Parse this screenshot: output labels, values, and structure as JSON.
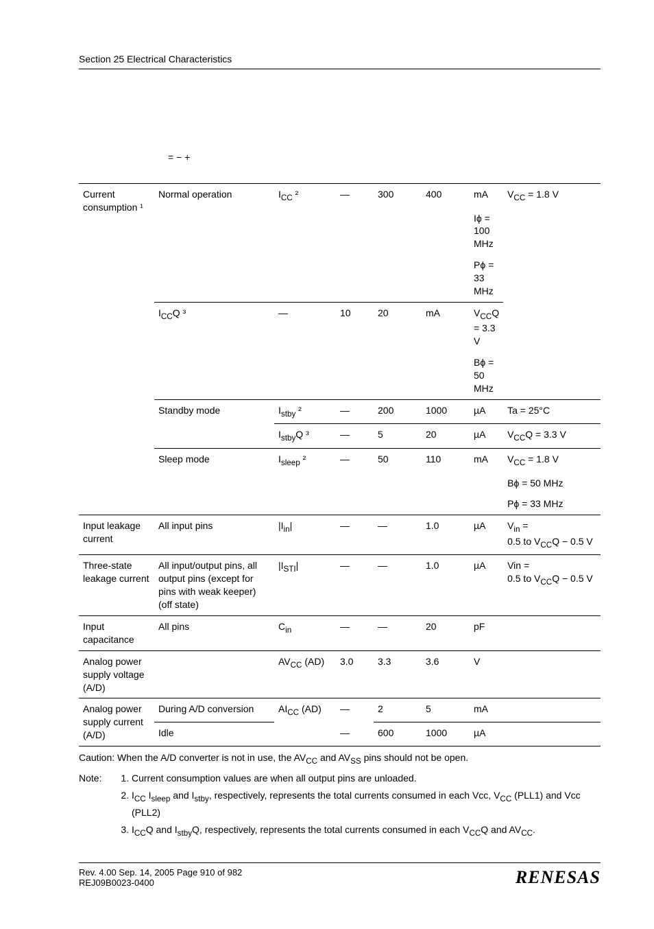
{
  "header": {
    "text": "Section 25   Electrical Characteristics"
  },
  "formula": "= −            +",
  "table": {
    "rows": [
      {
        "cells": [
          "Current consumption ¹",
          "Normal operation",
          "I<sub>CC</sub> ²",
          "—",
          "300",
          "400",
          "mA",
          "V<sub>CC</sub> = 1.8 V"
        ],
        "borders": [
          "bt-heavy",
          "bt-heavy",
          "bt-heavy",
          "bt-heavy",
          "bt-heavy",
          "bt-heavy",
          "bt-heavy",
          "bt-heavy"
        ],
        "rowspan": [
          6,
          3,
          1,
          1,
          1,
          1,
          1,
          1
        ]
      },
      {
        "cells": [
          "",
          "",
          "",
          "",
          "Iϕ = 100 MHz"
        ],
        "borders": [
          "",
          "",
          "",
          "",
          ""
        ]
      },
      {
        "cells": [
          "",
          "",
          "",
          "",
          "Pϕ = 33 MHz"
        ],
        "borders": [
          "",
          "",
          "",
          "",
          ""
        ]
      },
      {
        "cells": [
          "I<sub>CC</sub>Q ³",
          "—",
          "10",
          "20",
          "mA",
          "V<sub>CC</sub>Q = 3.3 V"
        ],
        "borders": [
          "bt",
          "bt",
          "bt",
          "bt",
          "bt",
          "bt"
        ],
        "rowspan": [
          2,
          1,
          1,
          1,
          1,
          1
        ]
      },
      {
        "cells": [
          "",
          "",
          "",
          "",
          "Bϕ = 50 MHz"
        ],
        "borders": [
          "",
          "",
          "",
          "",
          ""
        ]
      },
      {
        "cells": [
          "Standby mode",
          "I<sub>stby</sub> ²",
          "—",
          "200",
          "1000",
          "µA",
          "Ta = 25°C"
        ],
        "borders": [
          "bt",
          "bt",
          "bt",
          "bt",
          "bt",
          "bt",
          "bt"
        ],
        "rowspan": [
          2,
          1,
          1,
          1,
          1,
          1,
          1
        ]
      },
      {
        "cells": [
          "",
          "I<sub>stby</sub>Q ³",
          "—",
          "5",
          "20",
          "µA",
          "V<sub>CC</sub>Q = 3.3 V"
        ],
        "borders": [
          "",
          "bt",
          "bt",
          "bt",
          "bt",
          "bt",
          "bt"
        ]
      },
      {
        "cells": [
          "",
          "Sleep mode",
          "I<sub>sleep</sub> ²",
          "—",
          "50",
          "110",
          "mA",
          "V<sub>CC</sub> = 1.8 V"
        ],
        "borders": [
          "",
          "bt",
          "bt",
          "bt",
          "bt",
          "bt",
          "bt",
          "bt"
        ],
        "rowspan": [
          1,
          3,
          1,
          1,
          1,
          1,
          1,
          1
        ]
      },
      {
        "cells": [
          "",
          "",
          "",
          "",
          "",
          "",
          "Bϕ = 50 MHz"
        ],
        "borders": [
          "",
          "",
          "",
          "",
          "",
          "",
          ""
        ]
      },
      {
        "cells": [
          "",
          "",
          "",
          "",
          "",
          "",
          "Pϕ = 33 MHz"
        ],
        "borders": [
          "",
          "",
          "",
          "",
          "",
          "",
          ""
        ]
      },
      {
        "cells": [
          "Input leakage current",
          "All input pins",
          "|I<sub>in</sub>|",
          "—",
          "—",
          "1.0",
          "µA",
          "V<sub>in</sub> =<br>0.5 to V<sub>CC</sub>Q − 0.5 V"
        ],
        "borders": [
          "bt",
          "bt",
          "bt",
          "bt",
          "bt",
          "bt",
          "bt",
          "bt"
        ]
      },
      {
        "cells": [
          "Three-state leakage current",
          "All input/output pins, all output pins (except for pins with weak keeper)<br>(off state)",
          "|I<sub>STI</sub>|",
          "—",
          "—",
          "1.0",
          "µA",
          "Vin =<br>0.5 to V<sub>CC</sub>Q − 0.5 V"
        ],
        "borders": [
          "bt",
          "bt",
          "bt",
          "bt",
          "bt",
          "bt",
          "bt",
          "bt"
        ]
      },
      {
        "cells": [
          "Input capacitance",
          "All pins",
          "C<sub>in</sub>",
          "—",
          "—",
          "20",
          "pF",
          ""
        ],
        "borders": [
          "bt",
          "bt",
          "bt",
          "bt",
          "bt",
          "bt",
          "bt",
          "bt"
        ]
      },
      {
        "cells": [
          "Analog power supply voltage (A/D)",
          "",
          "AV<sub>CC</sub> (AD)",
          "3.0",
          "3.3",
          "3.6",
          "V",
          ""
        ],
        "borders": [
          "bt",
          "bt",
          "bt",
          "bt",
          "bt",
          "bt",
          "bt",
          "bt"
        ]
      },
      {
        "cells": [
          "Analog power supply current (A/D)",
          "During A/D conversion",
          "AI<sub>CC</sub> (AD)",
          "—",
          "2",
          "5",
          "mA",
          ""
        ],
        "borders": [
          "bt",
          "bt",
          "bt",
          "bt",
          "bt",
          "bt",
          "bt",
          "bt"
        ],
        "rowspan": [
          2,
          1,
          2,
          1,
          1,
          1,
          1,
          1
        ]
      },
      {
        "cells": [
          "Idle",
          "—",
          "600",
          "1000",
          "µA",
          ""
        ],
        "borders": [
          "bt bb-heavy",
          "bb-heavy",
          "bt bb-heavy",
          "bt bb-heavy",
          "bt bb-heavy",
          "bt bb-heavy",
          "bt bb-heavy"
        ],
        "lastrow": true
      }
    ]
  },
  "caution": "Caution:    When the A/D converter is not in use, the AV<sub>CC</sub> and AV<sub>SS</sub> pins should not be open.",
  "notes": {
    "label": "Note:",
    "items": [
      "Current consumption values are when all output pins are unloaded.",
      "I<sub>CC</sub> I<sub>sleep</sub> and I<sub>stby</sub>, respectively, represents the total currents consumed in each Vcc, V<sub>CC</sub> (PLL1) and Vcc (PLL2)",
      "I<sub>CC</sub>Q and I<sub>stby</sub>Q, respectively, represents the total currents consumed in each V<sub>CC</sub>Q and AV<sub>CC</sub>."
    ]
  },
  "footer": {
    "line1": "Rev. 4.00  Sep. 14, 2005  Page 910 of 982",
    "line2": "REJ09B0023-0400",
    "logo": "RENESAS"
  }
}
